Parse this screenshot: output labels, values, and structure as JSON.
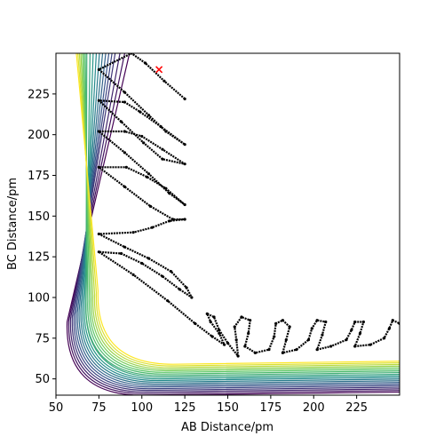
{
  "chart_data": {
    "type": "contour",
    "title": "",
    "xlabel": "AB Distance/pm",
    "ylabel": "BC Distance/pm",
    "xlim": [
      50,
      250
    ],
    "ylim": [
      40,
      250
    ],
    "x_ticks": [
      50,
      75,
      100,
      125,
      150,
      175,
      200,
      225
    ],
    "x_tick_labels": [
      "50",
      "75",
      "100",
      "125",
      "150",
      "175",
      "200",
      "225"
    ],
    "y_ticks": [
      50,
      75,
      100,
      125,
      150,
      175,
      200,
      225
    ],
    "y_tick_labels": [
      "50",
      "75",
      "100",
      "125",
      "150",
      "175",
      "200",
      "225"
    ],
    "colormap": [
      "#440154",
      "#3b528b",
      "#21908c",
      "#5dc863",
      "#fde725"
    ],
    "contour_levels": [
      {
        "value": 1,
        "valley": [
          95,
          250
        ],
        "corner": [
          55,
          40
        ]
      },
      {
        "value": 2,
        "valley": [
          92,
          243
        ],
        "corner": [
          56,
          41
        ]
      },
      {
        "value": 3,
        "valley": [
          89,
          236
        ],
        "corner": [
          57,
          42
        ]
      },
      {
        "value": 4,
        "valley": [
          86,
          229
        ],
        "corner": [
          58,
          43
        ]
      },
      {
        "value": 5,
        "valley": [
          84,
          222
        ],
        "corner": [
          59,
          44
        ]
      },
      {
        "value": 6,
        "valley": [
          82,
          214
        ],
        "corner": [
          60,
          45
        ]
      },
      {
        "value": 7,
        "valley": [
          80,
          207
        ],
        "corner": [
          61,
          46
        ]
      },
      {
        "value": 8,
        "valley": [
          78,
          200
        ],
        "corner": [
          62,
          47
        ]
      },
      {
        "value": 9,
        "valley": [
          76,
          192
        ],
        "corner": [
          63,
          48
        ]
      },
      {
        "value": 10,
        "valley": [
          74,
          184
        ],
        "corner": [
          64,
          49
        ]
      },
      {
        "value": 11,
        "valley": [
          72,
          176
        ],
        "corner": [
          65,
          50
        ]
      },
      {
        "value": 12,
        "valley": [
          70,
          168
        ],
        "corner": [
          66,
          51
        ]
      },
      {
        "value": 13,
        "valley": [
          68,
          160
        ],
        "corner": [
          66,
          52
        ]
      },
      {
        "value": 14,
        "valley": [
          67,
          152
        ],
        "corner": [
          67,
          53
        ]
      },
      {
        "value": 15,
        "valley": [
          66,
          143
        ],
        "corner": [
          68,
          54
        ]
      },
      {
        "value": 16,
        "valley": [
          65,
          134
        ],
        "corner": [
          69,
          55
        ]
      },
      {
        "value": 17,
        "valley": [
          64,
          125
        ],
        "corner": [
          70,
          56
        ]
      },
      {
        "value": 18,
        "valley": [
          63,
          116
        ],
        "corner": [
          71,
          57
        ]
      },
      {
        "value": 19,
        "valley": [
          62,
          107
        ],
        "corner": [
          72,
          58
        ]
      },
      {
        "value": 20,
        "valley": [
          61,
          98
        ],
        "corner": [
          73,
          59
        ]
      }
    ],
    "series": [
      {
        "type": "trajectory",
        "color": "#000000",
        "points": [
          [
            125,
            222
          ],
          [
            113,
            233
          ],
          [
            102,
            244
          ],
          [
            94,
            250
          ],
          [
            75,
            240
          ],
          [
            90,
            226
          ],
          [
            104,
            212
          ],
          [
            114,
            202
          ],
          [
            125,
            194
          ],
          [
            111,
            205
          ],
          [
            99,
            214
          ],
          [
            90,
            220
          ],
          [
            75,
            221
          ],
          [
            88,
            208
          ],
          [
            101,
            195
          ],
          [
            112,
            185
          ],
          [
            125,
            182
          ],
          [
            112,
            191
          ],
          [
            100,
            199
          ],
          [
            90,
            202
          ],
          [
            75,
            202
          ],
          [
            90,
            189
          ],
          [
            104,
            176
          ],
          [
            116,
            164
          ],
          [
            125,
            157
          ],
          [
            114,
            167
          ],
          [
            103,
            174
          ],
          [
            91,
            180
          ],
          [
            75,
            180
          ],
          [
            90,
            168
          ],
          [
            105,
            156
          ],
          [
            118,
            148
          ],
          [
            125,
            148
          ],
          [
            116,
            147
          ],
          [
            106,
            143
          ],
          [
            95,
            140
          ],
          [
            75,
            139
          ],
          [
            90,
            131
          ],
          [
            104,
            124
          ],
          [
            117,
            116
          ],
          [
            126,
            106
          ],
          [
            129,
            100
          ],
          [
            122,
            105
          ],
          [
            112,
            113
          ],
          [
            100,
            121
          ],
          [
            88,
            127
          ],
          [
            75,
            128
          ],
          [
            95,
            114
          ],
          [
            115,
            98
          ],
          [
            131,
            84
          ],
          [
            141,
            76
          ],
          [
            148,
            71
          ],
          [
            145,
            78
          ],
          [
            140,
            85
          ],
          [
            138,
            90
          ],
          [
            142,
            88
          ],
          [
            145,
            80
          ],
          [
            150,
            72
          ],
          [
            156,
            64
          ],
          [
            155,
            74
          ],
          [
            154,
            82
          ],
          [
            158,
            88
          ],
          [
            163,
            86
          ],
          [
            162,
            78
          ],
          [
            160,
            70
          ],
          [
            166,
            66
          ],
          [
            174,
            68
          ],
          [
            177,
            76
          ],
          [
            178,
            84
          ],
          [
            182,
            86
          ],
          [
            186,
            82
          ],
          [
            184,
            74
          ],
          [
            182,
            66
          ],
          [
            190,
            68
          ],
          [
            197,
            74
          ],
          [
            199,
            81
          ],
          [
            202,
            86
          ],
          [
            207,
            85
          ],
          [
            205,
            77
          ],
          [
            202,
            68
          ],
          [
            210,
            70
          ],
          [
            219,
            74
          ],
          [
            222,
            80
          ],
          [
            224,
            85
          ],
          [
            229,
            85
          ],
          [
            227,
            78
          ],
          [
            224,
            70
          ],
          [
            233,
            71
          ],
          [
            241,
            75
          ],
          [
            244,
            81
          ],
          [
            246,
            86
          ],
          [
            250,
            84
          ]
        ]
      }
    ],
    "markers": [
      {
        "type": "x",
        "x": 110,
        "y": 240,
        "color": "#ff0000"
      }
    ]
  }
}
